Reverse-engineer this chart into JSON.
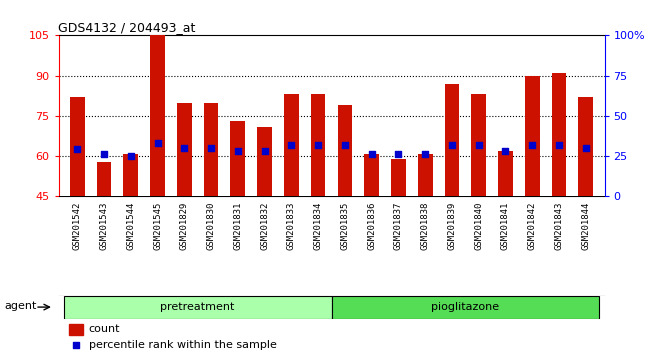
{
  "title": "GDS4132 / 204493_at",
  "samples": [
    "GSM201542",
    "GSM201543",
    "GSM201544",
    "GSM201545",
    "GSM201829",
    "GSM201830",
    "GSM201831",
    "GSM201832",
    "GSM201833",
    "GSM201834",
    "GSM201835",
    "GSM201836",
    "GSM201837",
    "GSM201838",
    "GSM201839",
    "GSM201840",
    "GSM201841",
    "GSM201842",
    "GSM201843",
    "GSM201844"
  ],
  "counts": [
    82,
    58,
    61,
    105,
    80,
    80,
    73,
    71,
    83,
    83,
    79,
    61,
    59,
    61,
    87,
    83,
    62,
    90,
    91,
    82
  ],
  "percentile_y": [
    62.5,
    61,
    60,
    65,
    63,
    63,
    62,
    62,
    64,
    64,
    64,
    61,
    61,
    61,
    64,
    64,
    62,
    64,
    64,
    63
  ],
  "group_labels": [
    "pretreatment",
    "pioglitazone"
  ],
  "group_colors": [
    "#aaffaa",
    "#55dd55"
  ],
  "group_split": 10,
  "ylim_left": [
    45,
    105
  ],
  "ylim_right": [
    0,
    100
  ],
  "yticks_left": [
    45,
    60,
    75,
    90,
    105
  ],
  "yticks_right": [
    0,
    25,
    50,
    75,
    100
  ],
  "ytick_right_labels": [
    "0",
    "25",
    "50",
    "75",
    "100%"
  ],
  "bar_color": "#cc1100",
  "dot_color": "#0000cc",
  "bar_width": 0.55,
  "xtick_bg": "#c8c8c8",
  "agent_label": "agent"
}
